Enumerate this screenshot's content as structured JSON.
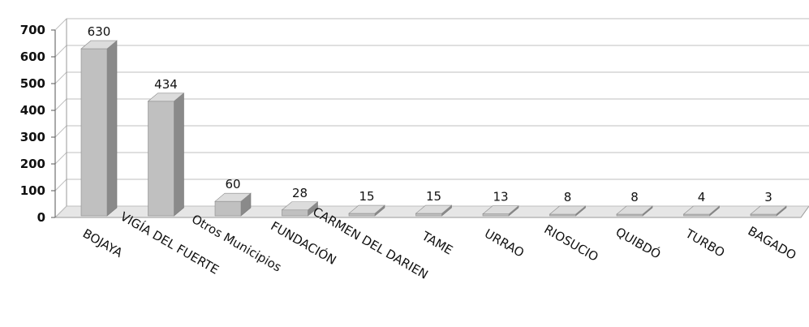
{
  "chart_data": {
    "type": "bar",
    "style": "3d-column",
    "title": "",
    "xlabel": "",
    "ylabel": "",
    "categories": [
      "BOJAYA",
      "VIGÍA DEL FUERTE",
      "Otros Municipios",
      "FUNDACIÓN",
      "CARMEN DEL DARIEN",
      "TAME",
      "URRAO",
      "RIOSUCIO",
      "QUIBDÓ",
      "TURBO",
      "BAGADO"
    ],
    "values": [
      630,
      434,
      60,
      28,
      15,
      15,
      13,
      8,
      8,
      4,
      3
    ],
    "value_labels": [
      "630",
      "434",
      "60",
      "28",
      "15",
      "15",
      "13",
      "8",
      "8",
      "4",
      "3"
    ],
    "ylim": [
      0,
      700
    ],
    "yticks": [
      0,
      100,
      200,
      300,
      400,
      500,
      600,
      700
    ],
    "ytick_labels": [
      "0",
      "100",
      "200",
      "300",
      "400",
      "500",
      "600",
      "700"
    ],
    "grid": true,
    "legend": "none",
    "colors": {
      "bar_front": "#c0c0c0",
      "bar_side": "#8a8a8a",
      "bar_top": "#dcdcdc",
      "grid": "#bfbfbf",
      "floor": "#e6e6e6"
    }
  }
}
